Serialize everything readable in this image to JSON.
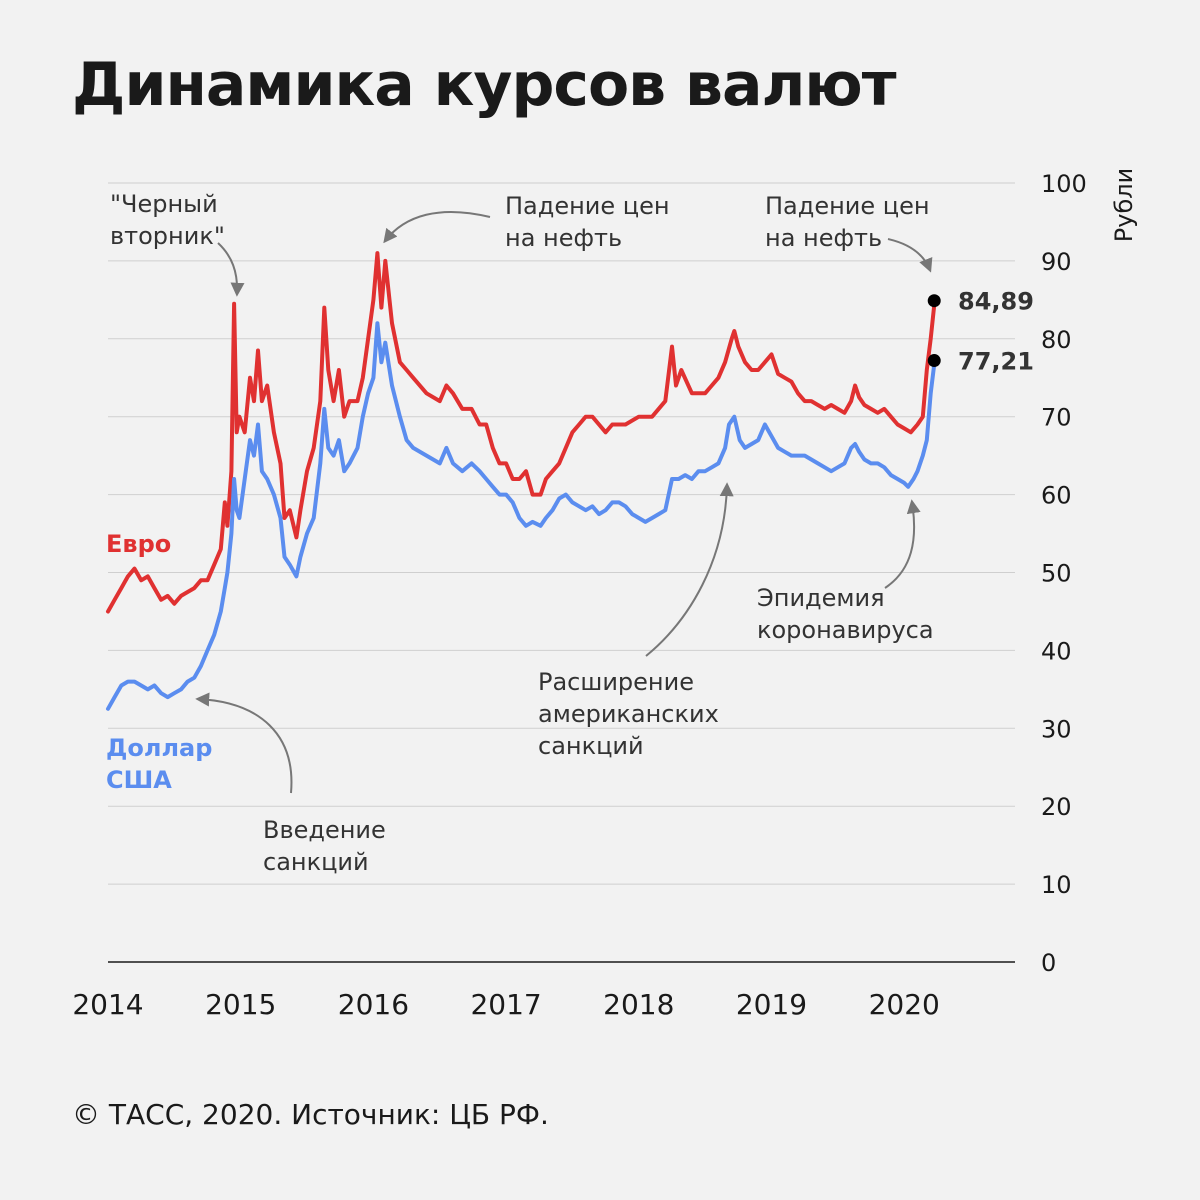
{
  "title": "Динамика курсов валют",
  "footer": "© ТАСС, 2020. Источник: ЦБ РФ.",
  "colors": {
    "euro": "#e03131",
    "usd": "#5b8def",
    "grid": "#cfcfcf",
    "axis": "#1a1a1a",
    "arrow": "#777777",
    "dot": "#000000"
  },
  "chart_data": {
    "type": "line",
    "ylabel": "Рубли",
    "ylim": [
      0,
      100
    ],
    "yticks": [
      0,
      10,
      20,
      30,
      40,
      50,
      60,
      70,
      80,
      90,
      100
    ],
    "xlim": [
      2014,
      2020.85
    ],
    "xticks": [
      "2014",
      "2015",
      "2016",
      "2017",
      "2018",
      "2019",
      "2020"
    ],
    "grid": true,
    "series": [
      {
        "name": "Евро",
        "color_key": "euro",
        "points": [
          [
            2014.0,
            45.0
          ],
          [
            2014.05,
            46.5
          ],
          [
            2014.1,
            48.0
          ],
          [
            2014.15,
            49.5
          ],
          [
            2014.2,
            50.5
          ],
          [
            2014.25,
            49.0
          ],
          [
            2014.3,
            49.5
          ],
          [
            2014.35,
            48.0
          ],
          [
            2014.4,
            46.5
          ],
          [
            2014.45,
            47.0
          ],
          [
            2014.5,
            46.0
          ],
          [
            2014.55,
            47.0
          ],
          [
            2014.6,
            47.5
          ],
          [
            2014.65,
            48.0
          ],
          [
            2014.7,
            49.0
          ],
          [
            2014.75,
            49.0
          ],
          [
            2014.8,
            51.0
          ],
          [
            2014.85,
            53.0
          ],
          [
            2014.88,
            59.0
          ],
          [
            2014.9,
            56.0
          ],
          [
            2014.93,
            63.0
          ],
          [
            2014.95,
            84.5
          ],
          [
            2014.97,
            68.0
          ],
          [
            2014.99,
            70.0
          ],
          [
            2015.03,
            68.0
          ],
          [
            2015.07,
            75.0
          ],
          [
            2015.1,
            72.0
          ],
          [
            2015.13,
            78.5
          ],
          [
            2015.16,
            72.0
          ],
          [
            2015.2,
            74.0
          ],
          [
            2015.25,
            68.0
          ],
          [
            2015.3,
            64.0
          ],
          [
            2015.33,
            57.0
          ],
          [
            2015.37,
            58.0
          ],
          [
            2015.42,
            54.5
          ],
          [
            2015.45,
            58.0
          ],
          [
            2015.5,
            63.0
          ],
          [
            2015.55,
            66.0
          ],
          [
            2015.6,
            72.0
          ],
          [
            2015.63,
            84.0
          ],
          [
            2015.66,
            76.0
          ],
          [
            2015.7,
            72.0
          ],
          [
            2015.74,
            76.0
          ],
          [
            2015.78,
            70.0
          ],
          [
            2015.82,
            72.0
          ],
          [
            2015.88,
            72.0
          ],
          [
            2015.92,
            75.0
          ],
          [
            2015.96,
            80.0
          ],
          [
            2016.0,
            85.0
          ],
          [
            2016.03,
            91.0
          ],
          [
            2016.06,
            84.0
          ],
          [
            2016.09,
            90.0
          ],
          [
            2016.14,
            82.0
          ],
          [
            2016.2,
            77.0
          ],
          [
            2016.25,
            76.0
          ],
          [
            2016.3,
            75.0
          ],
          [
            2016.4,
            73.0
          ],
          [
            2016.5,
            72.0
          ],
          [
            2016.55,
            74.0
          ],
          [
            2016.6,
            73.0
          ],
          [
            2016.67,
            71.0
          ],
          [
            2016.74,
            71.0
          ],
          [
            2016.8,
            69.0
          ],
          [
            2016.85,
            69.0
          ],
          [
            2016.9,
            66.0
          ],
          [
            2016.95,
            64.0
          ],
          [
            2017.0,
            64.0
          ],
          [
            2017.05,
            62.0
          ],
          [
            2017.1,
            62.0
          ],
          [
            2017.15,
            63.0
          ],
          [
            2017.2,
            60.0
          ],
          [
            2017.26,
            60.0
          ],
          [
            2017.3,
            62.0
          ],
          [
            2017.35,
            63.0
          ],
          [
            2017.4,
            64.0
          ],
          [
            2017.45,
            66.0
          ],
          [
            2017.5,
            68.0
          ],
          [
            2017.55,
            69.0
          ],
          [
            2017.6,
            70.0
          ],
          [
            2017.65,
            70.0
          ],
          [
            2017.7,
            69.0
          ],
          [
            2017.75,
            68.0
          ],
          [
            2017.8,
            69.0
          ],
          [
            2017.9,
            69.0
          ],
          [
            2018.0,
            70.0
          ],
          [
            2018.1,
            70.0
          ],
          [
            2018.2,
            72.0
          ],
          [
            2018.25,
            79.0
          ],
          [
            2018.28,
            74.0
          ],
          [
            2018.32,
            76.0
          ],
          [
            2018.4,
            73.0
          ],
          [
            2018.5,
            73.0
          ],
          [
            2018.55,
            74.0
          ],
          [
            2018.6,
            75.0
          ],
          [
            2018.65,
            77.0
          ],
          [
            2018.7,
            80.0
          ],
          [
            2018.72,
            81.0
          ],
          [
            2018.75,
            79.0
          ],
          [
            2018.8,
            77.0
          ],
          [
            2018.85,
            76.0
          ],
          [
            2018.9,
            76.0
          ],
          [
            2018.95,
            77.0
          ],
          [
            2019.0,
            78.0
          ],
          [
            2019.05,
            75.5
          ],
          [
            2019.1,
            75.0
          ],
          [
            2019.15,
            74.5
          ],
          [
            2019.2,
            73.0
          ],
          [
            2019.25,
            72.0
          ],
          [
            2019.3,
            72.0
          ],
          [
            2019.35,
            71.5
          ],
          [
            2019.4,
            71.0
          ],
          [
            2019.45,
            71.5
          ],
          [
            2019.5,
            71.0
          ],
          [
            2019.55,
            70.5
          ],
          [
            2019.6,
            72.0
          ],
          [
            2019.63,
            74.0
          ],
          [
            2019.66,
            72.5
          ],
          [
            2019.7,
            71.5
          ],
          [
            2019.75,
            71.0
          ],
          [
            2019.8,
            70.5
          ],
          [
            2019.85,
            71.0
          ],
          [
            2019.9,
            70.0
          ],
          [
            2019.95,
            69.0
          ],
          [
            2020.0,
            68.5
          ],
          [
            2020.05,
            68.0
          ],
          [
            2020.1,
            69.0
          ],
          [
            2020.14,
            70.0
          ],
          [
            2020.17,
            76.0
          ],
          [
            2020.2,
            80.0
          ],
          [
            2020.23,
            84.89
          ]
        ]
      },
      {
        "name": "Доллар США",
        "color_key": "usd",
        "points": [
          [
            2014.0,
            32.5
          ],
          [
            2014.05,
            34.0
          ],
          [
            2014.1,
            35.5
          ],
          [
            2014.15,
            36.0
          ],
          [
            2014.2,
            36.0
          ],
          [
            2014.25,
            35.5
          ],
          [
            2014.3,
            35.0
          ],
          [
            2014.35,
            35.5
          ],
          [
            2014.4,
            34.5
          ],
          [
            2014.45,
            34.0
          ],
          [
            2014.5,
            34.5
          ],
          [
            2014.55,
            35.0
          ],
          [
            2014.6,
            36.0
          ],
          [
            2014.65,
            36.5
          ],
          [
            2014.7,
            38.0
          ],
          [
            2014.75,
            40.0
          ],
          [
            2014.8,
            42.0
          ],
          [
            2014.85,
            45.0
          ],
          [
            2014.88,
            48.0
          ],
          [
            2014.9,
            50.0
          ],
          [
            2014.93,
            55.0
          ],
          [
            2014.95,
            62.0
          ],
          [
            2014.97,
            58.0
          ],
          [
            2014.99,
            57.0
          ],
          [
            2015.03,
            62.0
          ],
          [
            2015.07,
            67.0
          ],
          [
            2015.1,
            65.0
          ],
          [
            2015.13,
            69.0
          ],
          [
            2015.16,
            63.0
          ],
          [
            2015.2,
            62.0
          ],
          [
            2015.25,
            60.0
          ],
          [
            2015.3,
            57.0
          ],
          [
            2015.33,
            52.0
          ],
          [
            2015.37,
            51.0
          ],
          [
            2015.42,
            49.5
          ],
          [
            2015.45,
            52.0
          ],
          [
            2015.5,
            55.0
          ],
          [
            2015.55,
            57.0
          ],
          [
            2015.6,
            64.0
          ],
          [
            2015.63,
            71.0
          ],
          [
            2015.66,
            66.0
          ],
          [
            2015.7,
            65.0
          ],
          [
            2015.74,
            67.0
          ],
          [
            2015.78,
            63.0
          ],
          [
            2015.82,
            64.0
          ],
          [
            2015.88,
            66.0
          ],
          [
            2015.92,
            70.0
          ],
          [
            2015.96,
            73.0
          ],
          [
            2016.0,
            75.0
          ],
          [
            2016.03,
            82.0
          ],
          [
            2016.06,
            77.0
          ],
          [
            2016.09,
            79.5
          ],
          [
            2016.14,
            74.0
          ],
          [
            2016.2,
            70.0
          ],
          [
            2016.25,
            67.0
          ],
          [
            2016.3,
            66.0
          ],
          [
            2016.4,
            65.0
          ],
          [
            2016.5,
            64.0
          ],
          [
            2016.55,
            66.0
          ],
          [
            2016.6,
            64.0
          ],
          [
            2016.67,
            63.0
          ],
          [
            2016.74,
            64.0
          ],
          [
            2016.8,
            63.0
          ],
          [
            2016.85,
            62.0
          ],
          [
            2016.9,
            61.0
          ],
          [
            2016.95,
            60.0
          ],
          [
            2017.0,
            60.0
          ],
          [
            2017.05,
            59.0
          ],
          [
            2017.1,
            57.0
          ],
          [
            2017.15,
            56.0
          ],
          [
            2017.2,
            56.5
          ],
          [
            2017.26,
            56.0
          ],
          [
            2017.3,
            57.0
          ],
          [
            2017.35,
            58.0
          ],
          [
            2017.4,
            59.5
          ],
          [
            2017.45,
            60.0
          ],
          [
            2017.5,
            59.0
          ],
          [
            2017.55,
            58.5
          ],
          [
            2017.6,
            58.0
          ],
          [
            2017.65,
            58.5
          ],
          [
            2017.7,
            57.5
          ],
          [
            2017.75,
            58.0
          ],
          [
            2017.8,
            59.0
          ],
          [
            2017.85,
            59.0
          ],
          [
            2017.9,
            58.5
          ],
          [
            2017.95,
            57.5
          ],
          [
            2018.0,
            57.0
          ],
          [
            2018.05,
            56.5
          ],
          [
            2018.1,
            57.0
          ],
          [
            2018.15,
            57.5
          ],
          [
            2018.2,
            58.0
          ],
          [
            2018.25,
            62.0
          ],
          [
            2018.3,
            62.0
          ],
          [
            2018.35,
            62.5
          ],
          [
            2018.4,
            62.0
          ],
          [
            2018.45,
            63.0
          ],
          [
            2018.5,
            63.0
          ],
          [
            2018.55,
            63.5
          ],
          [
            2018.6,
            64.0
          ],
          [
            2018.65,
            66.0
          ],
          [
            2018.68,
            69.0
          ],
          [
            2018.72,
            70.0
          ],
          [
            2018.76,
            67.0
          ],
          [
            2018.8,
            66.0
          ],
          [
            2018.85,
            66.5
          ],
          [
            2018.9,
            67.0
          ],
          [
            2018.95,
            69.0
          ],
          [
            2019.0,
            67.5
          ],
          [
            2019.05,
            66.0
          ],
          [
            2019.1,
            65.5
          ],
          [
            2019.15,
            65.0
          ],
          [
            2019.2,
            65.0
          ],
          [
            2019.25,
            65.0
          ],
          [
            2019.3,
            64.5
          ],
          [
            2019.35,
            64.0
          ],
          [
            2019.4,
            63.5
          ],
          [
            2019.45,
            63.0
          ],
          [
            2019.5,
            63.5
          ],
          [
            2019.55,
            64.0
          ],
          [
            2019.6,
            66.0
          ],
          [
            2019.63,
            66.5
          ],
          [
            2019.66,
            65.5
          ],
          [
            2019.7,
            64.5
          ],
          [
            2019.75,
            64.0
          ],
          [
            2019.8,
            64.0
          ],
          [
            2019.85,
            63.5
          ],
          [
            2019.9,
            62.5
          ],
          [
            2019.95,
            62.0
          ],
          [
            2020.0,
            61.5
          ],
          [
            2020.03,
            61.0
          ],
          [
            2020.07,
            62.0
          ],
          [
            2020.1,
            63.0
          ],
          [
            2020.14,
            65.0
          ],
          [
            2020.17,
            67.0
          ],
          [
            2020.2,
            73.0
          ],
          [
            2020.23,
            77.21
          ]
        ]
      }
    ],
    "series_labels": {
      "euro": [
        "Евро"
      ],
      "usd": [
        "Доллар",
        "США"
      ]
    },
    "end_labels": [
      {
        "text": "84,89",
        "x": 2020.23,
        "y": 84.89
      },
      {
        "text": "77,21",
        "x": 2020.23,
        "y": 77.21
      }
    ],
    "annotations": [
      {
        "lines": [
          "\"Черный",
          "вторник\""
        ]
      },
      {
        "lines": [
          "Падение цен",
          "на нефть"
        ]
      },
      {
        "lines": [
          "Падение цен",
          "на нефть"
        ]
      },
      {
        "lines": [
          "Эпидемия",
          "коронавируса"
        ]
      },
      {
        "lines": [
          "Расширение",
          "американских",
          "санкций"
        ]
      },
      {
        "lines": [
          "Введение",
          "санкций"
        ]
      }
    ]
  }
}
